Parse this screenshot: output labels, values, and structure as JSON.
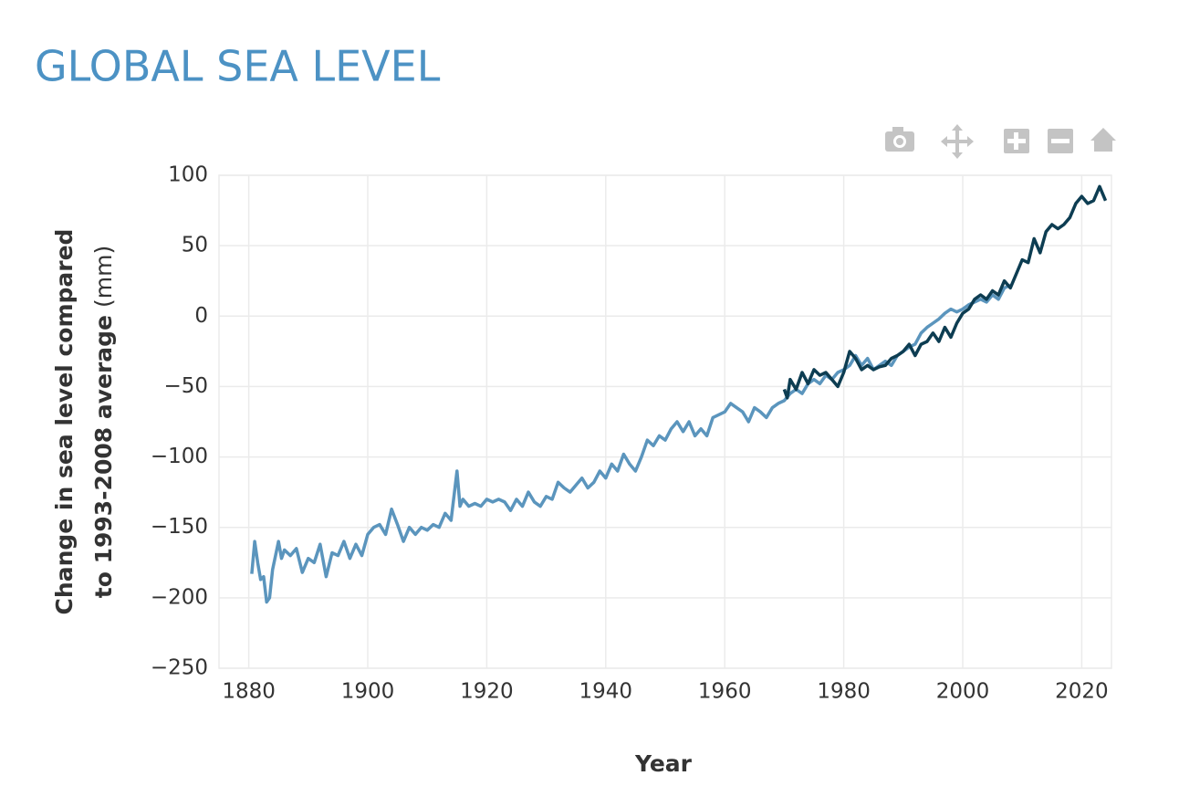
{
  "chart_data": {
    "type": "line",
    "title": "GLOBAL SEA LEVEL",
    "x_label": "Year",
    "y_label_lines": [
      "Change in sea level compared",
      "to 1993-2008 average"
    ],
    "y_label_unit": "(mm)",
    "xlim": [
      1875,
      2025
    ],
    "xticks": [
      1880,
      1900,
      1920,
      1940,
      1960,
      1980,
      2000,
      2020
    ],
    "ylim": [
      -250,
      100
    ],
    "yticks": [
      {
        "value": -250,
        "label": "−250"
      },
      {
        "value": -200,
        "label": "−200"
      },
      {
        "value": -150,
        "label": "−150"
      },
      {
        "value": -100,
        "label": "−100"
      },
      {
        "value": -50,
        "label": "−50"
      },
      0,
      50,
      100
    ],
    "grid": true,
    "series": [
      {
        "color": "#5b95bd",
        "x": [
          1880.5,
          1881,
          1881.5,
          1882,
          1882.5,
          1883,
          1883.5,
          1884,
          1885,
          1885.5,
          1886,
          1887,
          1888,
          1889,
          1890,
          1891,
          1892,
          1893,
          1894,
          1895,
          1896,
          1897,
          1898,
          1899,
          1900,
          1901,
          1902,
          1903,
          1904,
          1905,
          1906,
          1907,
          1908,
          1909,
          1910,
          1911,
          1912,
          1913,
          1914,
          1915,
          1915.5,
          1916,
          1917,
          1918,
          1919,
          1920,
          1921,
          1922,
          1923,
          1924,
          1925,
          1926,
          1927,
          1928,
          1929,
          1930,
          1931,
          1932,
          1933,
          1934,
          1935,
          1936,
          1937,
          1938,
          1939,
          1940,
          1941,
          1942,
          1943,
          1944,
          1945,
          1946,
          1947,
          1948,
          1949,
          1950,
          1951,
          1952,
          1953,
          1954,
          1955,
          1956,
          1957,
          1958,
          1959,
          1960,
          1961,
          1962,
          1963,
          1964,
          1965,
          1966,
          1967,
          1968,
          1969,
          1970,
          1971,
          1972,
          1973,
          1974,
          1975,
          1976,
          1977,
          1978,
          1979,
          1980,
          1981,
          1982,
          1983,
          1984,
          1985,
          1986,
          1987,
          1988,
          1989,
          1990,
          1991,
          1992,
          1993,
          1994,
          1995,
          1996,
          1997,
          1998,
          1999,
          2000,
          2001,
          2002,
          2003,
          2004,
          2005,
          2006,
          2007,
          2008
        ],
        "values": [
          -183,
          -160,
          -175,
          -187,
          -185,
          -203,
          -200,
          -180,
          -160,
          -172,
          -166,
          -170,
          -165,
          -182,
          -172,
          -175,
          -162,
          -185,
          -168,
          -170,
          -160,
          -172,
          -162,
          -170,
          -155,
          -150,
          -148,
          -155,
          -137,
          -148,
          -160,
          -150,
          -155,
          -150,
          -152,
          -148,
          -150,
          -140,
          -145,
          -110,
          -135,
          -130,
          -135,
          -133,
          -135,
          -130,
          -132,
          -130,
          -132,
          -138,
          -130,
          -135,
          -125,
          -132,
          -135,
          -128,
          -130,
          -118,
          -122,
          -125,
          -120,
          -115,
          -122,
          -118,
          -110,
          -115,
          -105,
          -110,
          -98,
          -105,
          -110,
          -100,
          -88,
          -92,
          -85,
          -88,
          -80,
          -75,
          -82,
          -75,
          -85,
          -80,
          -85,
          -72,
          -70,
          -68,
          -62,
          -65,
          -68,
          -75,
          -65,
          -68,
          -72,
          -65,
          -62,
          -60,
          -55,
          -52,
          -55,
          -48,
          -45,
          -48,
          -42,
          -45,
          -40,
          -38,
          -35,
          -28,
          -35,
          -30,
          -38,
          -35,
          -32,
          -35,
          -28,
          -25,
          -22,
          -20,
          -12,
          -8,
          -5,
          -2,
          2,
          5,
          3,
          5,
          8,
          10,
          12,
          10,
          15,
          12,
          20,
          22
        ]
      },
      {
        "color": "#0d3d52",
        "x": [
          1970,
          1970.5,
          1971,
          1972,
          1973,
          1974,
          1975,
          1976,
          1977,
          1978,
          1979,
          1980,
          1981,
          1982,
          1983,
          1984,
          1985,
          1986,
          1987,
          1988,
          1989,
          1990,
          1991,
          1992,
          1993,
          1994,
          1995,
          1996,
          1997,
          1998,
          1999,
          2000,
          2001,
          2002,
          2003,
          2004,
          2005,
          2006,
          2007,
          2008,
          2009,
          2010,
          2011,
          2012,
          2013,
          2014,
          2015,
          2016,
          2017,
          2018,
          2019,
          2020,
          2021,
          2022,
          2023,
          2024
        ],
        "values": [
          -52,
          -58,
          -45,
          -52,
          -40,
          -48,
          -38,
          -42,
          -40,
          -45,
          -50,
          -40,
          -25,
          -30,
          -38,
          -35,
          -38,
          -36,
          -35,
          -30,
          -28,
          -25,
          -20,
          -28,
          -20,
          -18,
          -12,
          -18,
          -8,
          -15,
          -5,
          2,
          5,
          12,
          15,
          12,
          18,
          15,
          25,
          20,
          30,
          40,
          38,
          55,
          45,
          60,
          65,
          62,
          65,
          70,
          80,
          85,
          80,
          82,
          92,
          82
        ]
      }
    ]
  }
}
